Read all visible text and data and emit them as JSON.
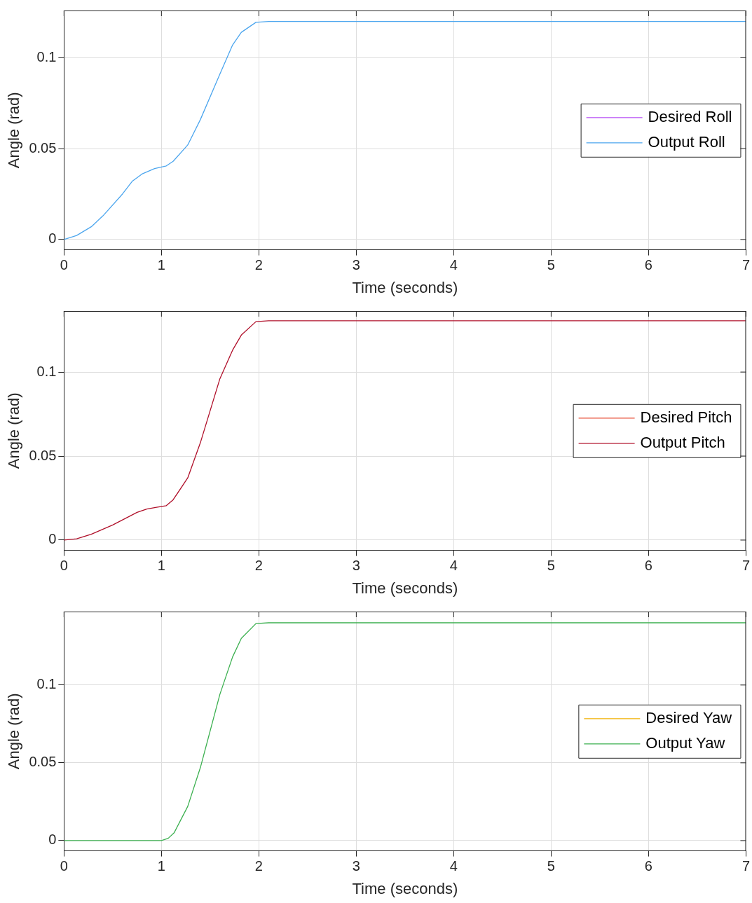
{
  "chart_data": [
    {
      "type": "line",
      "xlabel": "Time (seconds)",
      "ylabel": "Angle (rad)",
      "xlim": [
        0,
        7
      ],
      "xticks": [
        0,
        1,
        2,
        3,
        4,
        5,
        6,
        7
      ],
      "ylim": [
        -0.0057,
        0.126
      ],
      "yticks": [
        0,
        0.05,
        0.1
      ],
      "grid": true,
      "legend": "right",
      "x": [
        0,
        0.13,
        0.28,
        0.4,
        0.6,
        0.7,
        0.8,
        0.93,
        1.05,
        1.12,
        1.27,
        1.4,
        1.6,
        1.73,
        1.82,
        1.97,
        2.1,
        7
      ],
      "series": [
        {
          "name": "Desired Roll",
          "color": "#b64cf5",
          "values": [
            null,
            null,
            null,
            null,
            null,
            null,
            null,
            null,
            null,
            null,
            null,
            null,
            null,
            null,
            null,
            null,
            null,
            null
          ]
        },
        {
          "name": "Output Roll",
          "color": "#4da6ee",
          "values": [
            0,
            0.0022,
            0.007,
            0.013,
            0.025,
            0.032,
            0.036,
            0.039,
            0.0405,
            0.043,
            0.052,
            0.066,
            0.091,
            0.107,
            0.114,
            0.1195,
            0.12,
            0.12
          ]
        }
      ]
    },
    {
      "type": "line",
      "xlabel": "Time (seconds)",
      "ylabel": "Angle (rad)",
      "xlim": [
        0,
        7
      ],
      "xticks": [
        0,
        1,
        2,
        3,
        4,
        5,
        6,
        7
      ],
      "ylim": [
        -0.0061,
        0.1363
      ],
      "yticks": [
        0,
        0.05,
        0.1
      ],
      "grid": true,
      "legend": "right",
      "x": [
        0,
        0.13,
        0.28,
        0.5,
        0.75,
        0.85,
        0.95,
        1.05,
        1.12,
        1.27,
        1.4,
        1.6,
        1.73,
        1.82,
        1.97,
        2.1,
        7
      ],
      "series": [
        {
          "name": "Desired Pitch",
          "color": "#e8503a",
          "values": [
            null,
            null,
            null,
            null,
            null,
            null,
            null,
            null,
            null,
            null,
            null,
            null,
            null,
            null,
            null,
            null,
            null
          ]
        },
        {
          "name": "Output Pitch",
          "color": "#b0102a",
          "values": [
            0,
            0.0008,
            0.0035,
            0.009,
            0.0165,
            0.0185,
            0.0195,
            0.0205,
            0.024,
            0.037,
            0.058,
            0.096,
            0.113,
            0.122,
            0.13,
            0.1305,
            0.1305
          ]
        }
      ]
    },
    {
      "type": "line",
      "xlabel": "Time (seconds)",
      "ylabel": "Angle (rad)",
      "xlim": [
        0,
        7
      ],
      "xticks": [
        0,
        1,
        2,
        3,
        4,
        5,
        6,
        7
      ],
      "ylim": [
        -0.0066,
        0.1472
      ],
      "yticks": [
        0,
        0.05,
        0.1
      ],
      "grid": true,
      "legend": "right",
      "x": [
        0,
        1,
        1.07,
        1.13,
        1.27,
        1.4,
        1.6,
        1.73,
        1.82,
        1.97,
        2.1,
        7
      ],
      "series": [
        {
          "name": "Desired Yaw",
          "color": "#f0b000",
          "values": [
            null,
            null,
            null,
            null,
            null,
            null,
            null,
            null,
            null,
            null,
            null,
            null
          ]
        },
        {
          "name": "Output Yaw",
          "color": "#3cb050",
          "values": [
            0,
            0,
            0.0015,
            0.005,
            0.022,
            0.047,
            0.094,
            0.118,
            0.13,
            0.1395,
            0.14,
            0.14
          ]
        }
      ]
    }
  ]
}
